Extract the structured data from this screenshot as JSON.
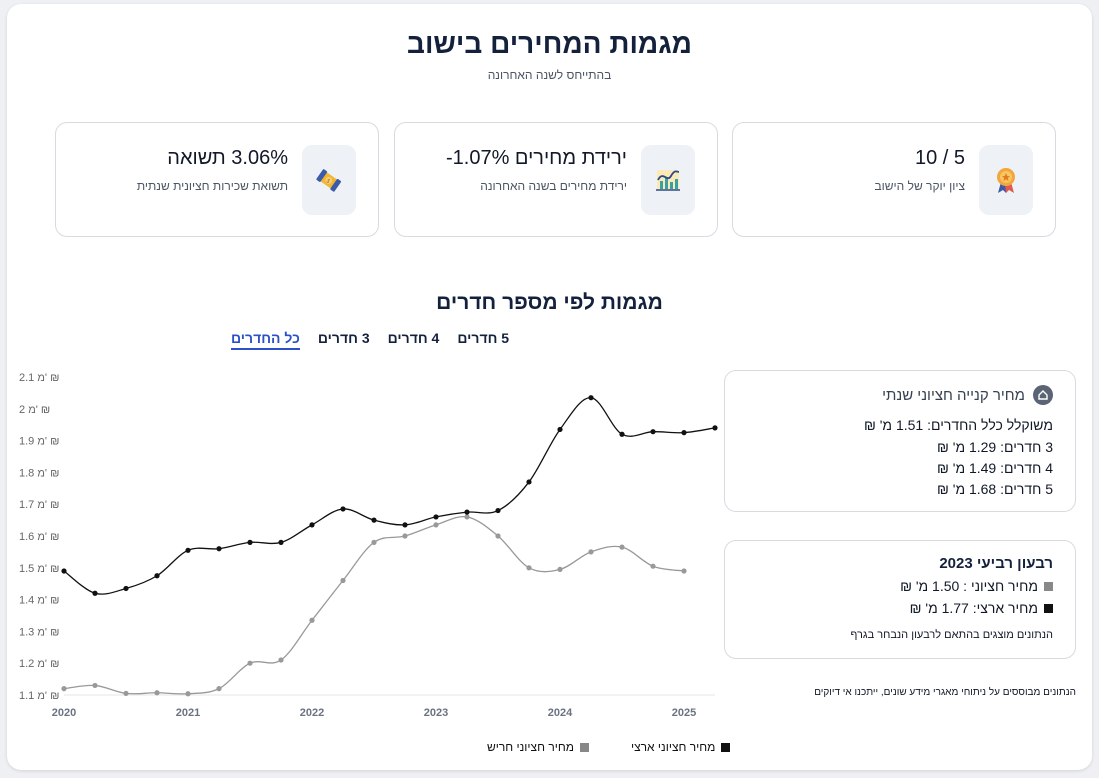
{
  "header": {
    "title": "מגמות המחירים בישוב",
    "subtitle": "בהתייחס לשנה האחרונה"
  },
  "cards": [
    {
      "title": "5 / 10",
      "subtitle": "ציון יוקר של הישוב",
      "icon": "award-ribbon-icon"
    },
    {
      "title": "ירידת מחירים 1.07%-",
      "subtitle": "ירידת מחירים בשנה האחרונה",
      "icon": "trend-chart-icon"
    },
    {
      "title": "3.06% תשואה",
      "subtitle": "תשואת שכירות חציונית שנתית",
      "icon": "money-bill-icon"
    }
  ],
  "section": {
    "title": "מגמות לפי מספר חדרים",
    "tabs": [
      "כל החדרים",
      "3 חדרים",
      "4 חדרים",
      "5 חדרים"
    ],
    "active_tab": 0
  },
  "annual_panel": {
    "title": "מחיר קנייה חציוני שנתי",
    "icon": "house-icon",
    "lines": [
      "משוקלל כלל החדרים: 1.51 מ' ₪",
      "3 חדרים: 1.29 מ' ₪",
      "4 חדרים: 1.49 מ' ₪",
      "5 חדרים: 1.68 מ' ₪"
    ]
  },
  "quarter_panel": {
    "title": "רבעון רביעי 2023",
    "median_line": "מחיר חציוני : 1.50 מ' ₪",
    "national_line": "מחיר ארצי: 1.77 מ' ₪",
    "note": "הנתונים מוצגים בהתאם לרבעון הנבחר בגרף"
  },
  "footnote": "הנתונים מבוססים על ניתוחי מאגרי מידע שונים, ייתכנו אי דיוקים",
  "colors": {
    "median": "#999999",
    "national": "#111111",
    "accent": "#2b50c8",
    "title": "#14213d"
  },
  "chart_data": {
    "type": "line",
    "xlim": [
      2020,
      2025.25
    ],
    "ylim": [
      1.1,
      2.1
    ],
    "yticks": [
      1.1,
      1.2,
      1.3,
      1.4,
      1.5,
      1.6,
      1.7,
      1.8,
      1.9,
      2.0,
      2.1
    ],
    "ytick_labels": [
      "1.1 מ' ₪",
      "1.2 מ' ₪",
      "1.3 מ' ₪",
      "1.4 מ' ₪",
      "1.5 מ' ₪",
      "1.6 מ' ₪",
      "1.7 מ' ₪",
      "1.8 מ' ₪",
      "1.9 מ' ₪",
      "2 מ' ₪",
      "2.1 מ' ₪"
    ],
    "xticks": [
      2020,
      2021,
      2022,
      2023,
      2024,
      2025
    ],
    "xtick_labels": [
      "2020",
      "2021",
      "2022",
      "2023",
      "2024",
      "2025"
    ],
    "series": [
      {
        "name": "מחיר חציוני חריש",
        "color": "#999999",
        "x": [
          2020,
          2020.25,
          2020.5,
          2020.75,
          2021,
          2021.25,
          2021.5,
          2021.75,
          2022,
          2022.25,
          2022.5,
          2022.75,
          2023,
          2023.25,
          2023.5,
          2023.75,
          2024,
          2024.25,
          2024.5,
          2024.75,
          2025
        ],
        "values": [
          1.12,
          1.13,
          1.105,
          1.107,
          1.104,
          1.12,
          1.2,
          1.21,
          1.335,
          1.46,
          1.58,
          1.6,
          1.635,
          1.66,
          1.6,
          1.5,
          1.495,
          1.55,
          1.565,
          1.505,
          1.49
        ]
      },
      {
        "name": "מחיר חציוני ארצי",
        "color": "#111111",
        "x": [
          2020,
          2020.25,
          2020.5,
          2020.75,
          2021,
          2021.25,
          2021.5,
          2021.75,
          2022,
          2022.25,
          2022.5,
          2022.75,
          2023,
          2023.25,
          2023.5,
          2023.75,
          2024,
          2024.25,
          2024.5,
          2024.75,
          2025,
          2025.25
        ],
        "values": [
          1.49,
          1.42,
          1.435,
          1.475,
          1.555,
          1.56,
          1.58,
          1.58,
          1.635,
          1.685,
          1.65,
          1.635,
          1.66,
          1.675,
          1.68,
          1.77,
          1.935,
          2.035,
          1.92,
          1.928,
          1.925,
          1.94
        ]
      }
    ]
  }
}
